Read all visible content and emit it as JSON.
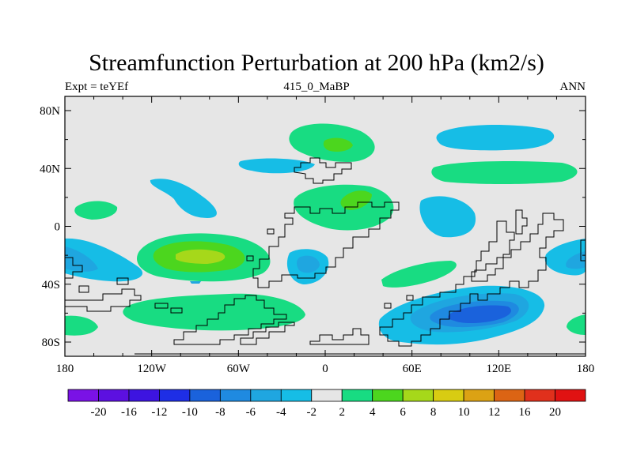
{
  "title": "Streamfunction Perturbation at 200 hPa (km2/s)",
  "subtitle_left": "Expt = teYEf",
  "subtitle_center": "415_0_MaBP",
  "subtitle_right": "ANN",
  "y_ticks": [
    "80N",
    "40N",
    "0",
    "40S",
    "80S"
  ],
  "x_ticks": [
    "180",
    "120W",
    "60W",
    "0",
    "60E",
    "120E",
    "180"
  ],
  "colorbar": {
    "labels": [
      "-20",
      "-16",
      "-12",
      "-10",
      "-8",
      "-6",
      "-4",
      "-2",
      "2",
      "4",
      "6",
      "8",
      "10",
      "12",
      "16",
      "20"
    ],
    "colors": [
      "#7a12e6",
      "#5c10e0",
      "#3d14e0",
      "#1e2ee6",
      "#1a62dc",
      "#1f8ae0",
      "#1fa6e0",
      "#16bde6",
      "#e6e6e6",
      "#18dc82",
      "#4cd61e",
      "#a6d81a",
      "#d8cc12",
      "#dca214",
      "#dc6414",
      "#e0301c",
      "#e01212"
    ]
  },
  "colors": {
    "background": "#e6e6e6",
    "neg2": "#16bde6",
    "neg4": "#1fa6e0",
    "neg6": "#1f8ae0",
    "neg8": "#1a62dc",
    "pos2": "#18dc82",
    "pos4": "#4cd61e",
    "pos6": "#a6d81a"
  }
}
